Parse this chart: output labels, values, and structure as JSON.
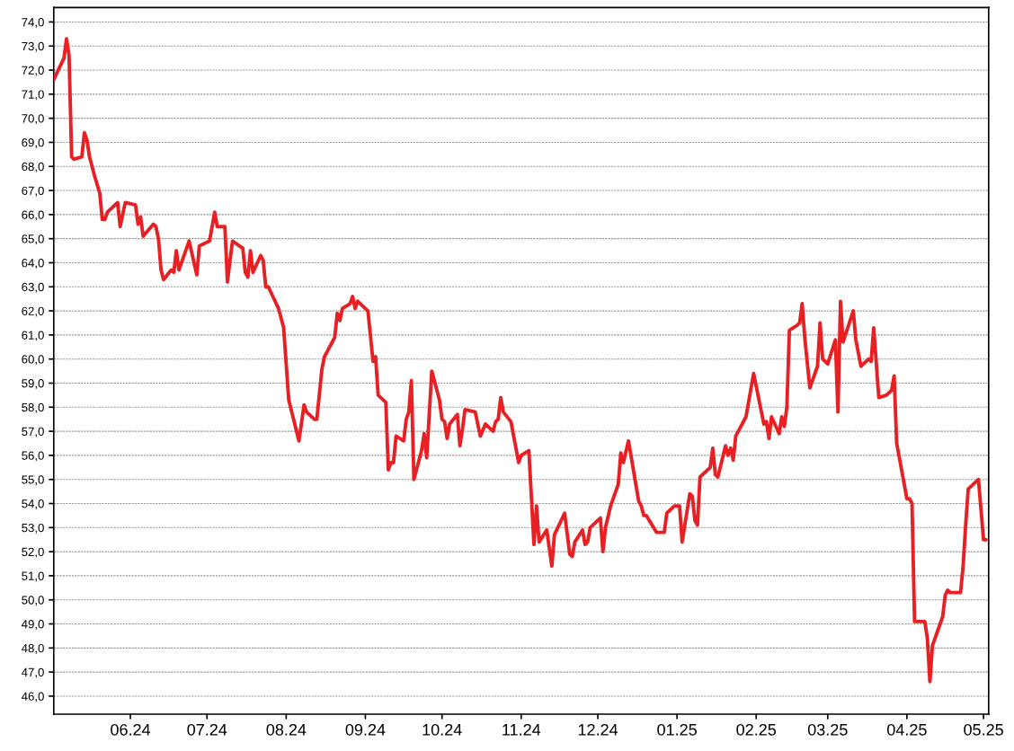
{
  "chart_data": {
    "type": "line",
    "x": [
      "2024-05-02",
      "2024-05-06",
      "2024-05-07",
      "2024-05-08",
      "2024-05-09",
      "2024-05-10",
      "2024-05-13",
      "2024-05-14",
      "2024-05-15",
      "2024-05-16",
      "2024-05-18",
      "2024-05-20",
      "2024-05-21",
      "2024-05-22",
      "2024-05-23",
      "2024-05-27",
      "2024-05-28",
      "2024-05-30",
      "2024-06-03",
      "2024-06-04",
      "2024-06-05",
      "2024-06-06",
      "2024-06-10",
      "2024-06-11",
      "2024-06-12",
      "2024-06-13",
      "2024-06-14",
      "2024-06-17",
      "2024-06-18",
      "2024-06-19",
      "2024-06-20",
      "2024-06-24",
      "2024-06-27",
      "2024-06-28",
      "2024-07-02",
      "2024-07-04",
      "2024-07-05",
      "2024-07-08",
      "2024-07-09",
      "2024-07-10",
      "2024-07-11",
      "2024-07-15",
      "2024-07-16",
      "2024-07-17",
      "2024-07-18",
      "2024-07-19",
      "2024-07-22",
      "2024-07-23",
      "2024-07-24",
      "2024-07-25",
      "2024-07-29",
      "2024-07-30",
      "2024-07-31",
      "2024-08-02",
      "2024-08-06",
      "2024-08-08",
      "2024-08-09",
      "2024-08-12",
      "2024-08-13",
      "2024-08-15",
      "2024-08-16",
      "2024-08-20",
      "2024-08-21",
      "2024-08-22",
      "2024-08-23",
      "2024-08-26",
      "2024-08-27",
      "2024-08-28",
      "2024-08-29",
      "2024-08-30",
      "2024-09-02",
      "2024-09-04",
      "2024-09-05",
      "2024-09-06",
      "2024-09-09",
      "2024-09-10",
      "2024-09-11",
      "2024-09-12",
      "2024-09-13",
      "2024-09-16",
      "2024-09-17",
      "2024-09-18",
      "2024-09-19",
      "2024-09-20",
      "2024-09-23",
      "2024-09-24",
      "2024-09-25",
      "2024-09-27",
      "2024-09-30",
      "2024-10-01",
      "2024-10-02",
      "2024-10-03",
      "2024-10-04",
      "2024-10-07",
      "2024-10-08",
      "2024-10-09",
      "2024-10-10",
      "2024-10-14",
      "2024-10-16",
      "2024-10-18",
      "2024-10-21",
      "2024-10-22",
      "2024-10-23",
      "2024-10-24",
      "2024-10-25",
      "2024-10-28",
      "2024-10-31",
      "2024-11-01",
      "2024-11-04",
      "2024-11-06",
      "2024-11-07",
      "2024-11-08",
      "2024-11-11",
      "2024-11-13",
      "2024-11-14",
      "2024-11-18",
      "2024-11-20",
      "2024-11-21",
      "2024-11-22",
      "2024-11-25",
      "2024-11-26",
      "2024-11-27",
      "2024-11-28",
      "2024-12-02",
      "2024-12-03",
      "2024-12-04",
      "2024-12-06",
      "2024-12-09",
      "2024-12-10",
      "2024-12-11",
      "2024-12-13",
      "2024-12-17",
      "2024-12-18",
      "2024-12-19",
      "2024-12-20",
      "2024-12-24",
      "2024-12-27",
      "2024-12-28",
      "2024-12-31",
      "2025-01-02",
      "2025-01-03",
      "2025-01-06",
      "2025-01-07",
      "2025-01-08",
      "2025-01-09",
      "2025-01-10",
      "2025-01-14",
      "2025-01-15",
      "2025-01-16",
      "2025-01-17",
      "2025-01-20",
      "2025-01-21",
      "2025-01-22",
      "2025-01-23",
      "2025-01-24",
      "2025-01-28",
      "2025-01-31",
      "2025-02-04",
      "2025-02-05",
      "2025-02-06",
      "2025-02-07",
      "2025-02-10",
      "2025-02-11",
      "2025-02-12",
      "2025-02-13",
      "2025-02-14",
      "2025-02-17",
      "2025-02-18",
      "2025-02-19",
      "2025-02-20",
      "2025-02-22",
      "2025-02-25",
      "2025-02-26",
      "2025-02-27",
      "2025-03-01",
      "2025-03-04",
      "2025-03-05",
      "2025-03-06",
      "2025-03-07",
      "2025-03-11",
      "2025-03-12",
      "2025-03-14",
      "2025-03-17",
      "2025-03-18",
      "2025-03-19",
      "2025-03-21",
      "2025-03-24",
      "2025-03-26",
      "2025-03-27",
      "2025-03-28",
      "2025-04-01",
      "2025-04-02",
      "2025-04-03",
      "2025-04-04",
      "2025-04-08",
      "2025-04-09",
      "2025-04-10",
      "2025-04-11",
      "2025-04-15",
      "2025-04-16",
      "2025-04-17",
      "2025-04-18",
      "2025-04-22",
      "2025-04-23",
      "2025-04-24",
      "2025-04-25",
      "2025-04-29",
      "2025-05-01",
      "2025-05-02"
    ],
    "series": [
      {
        "color": "#e82024",
        "values": [
          71.6,
          72.5,
          73.3,
          72.6,
          68.4,
          68.3,
          68.4,
          69.4,
          69.1,
          68.4,
          67.6,
          66.9,
          65.8,
          65.8,
          66.1,
          66.5,
          65.5,
          66.5,
          66.4,
          65.6,
          65.9,
          65.1,
          65.6,
          65.5,
          65.0,
          63.7,
          63.3,
          63.7,
          63.6,
          64.5,
          63.7,
          64.9,
          63.5,
          64.7,
          64.9,
          66.1,
          65.5,
          65.5,
          63.2,
          64.1,
          64.9,
          64.6,
          63.6,
          63.4,
          64.5,
          63.6,
          64.3,
          64.1,
          63.0,
          63.0,
          62.1,
          61.7,
          61.3,
          58.3,
          56.6,
          58.1,
          57.8,
          57.5,
          57.5,
          59.6,
          60.1,
          60.9,
          61.9,
          61.6,
          62.1,
          62.3,
          62.6,
          62.1,
          62.4,
          62.3,
          62.0,
          59.9,
          60.1,
          58.5,
          58.2,
          55.4,
          55.7,
          55.7,
          56.8,
          56.6,
          57.5,
          57.8,
          59.1,
          55.0,
          56.2,
          56.9,
          55.9,
          59.5,
          58.3,
          57.5,
          57.4,
          56.7,
          57.3,
          57.7,
          56.4,
          57.1,
          57.9,
          57.8,
          56.8,
          57.3,
          57.0,
          57.4,
          57.5,
          58.4,
          57.8,
          57.4,
          55.7,
          56.0,
          56.2,
          52.3,
          53.9,
          52.4,
          52.9,
          51.4,
          52.7,
          53.6,
          51.9,
          51.8,
          52.4,
          52.9,
          52.3,
          52.4,
          53.0,
          53.4,
          52.0,
          53.0,
          53.9,
          54.8,
          56.1,
          55.7,
          56.6,
          54.1,
          53.9,
          53.5,
          53.5,
          52.8,
          52.8,
          53.6,
          53.9,
          53.9,
          52.4,
          54.4,
          54.3,
          53.3,
          53.1,
          55.1,
          55.5,
          56.3,
          55.2,
          55.1,
          56.4,
          56.0,
          56.3,
          55.8,
          56.8,
          57.6,
          59.4,
          57.3,
          57.4,
          56.7,
          57.6,
          56.9,
          57.6,
          57.2,
          58.0,
          61.2,
          61.4,
          61.5,
          62.3,
          60.9,
          58.8,
          59.7,
          61.5,
          60.0,
          59.8,
          60.8,
          57.8,
          62.4,
          60.7,
          62.0,
          60.8,
          59.7,
          60.0,
          59.9,
          61.3,
          58.4,
          58.5,
          58.7,
          59.3,
          56.5,
          54.2,
          54.2,
          54.0,
          49.1,
          49.1,
          48.4,
          46.6,
          48.1,
          49.3,
          50.2,
          50.4,
          50.3,
          50.3,
          51.4,
          53.1,
          54.6,
          55.0,
          52.5,
          52.5
        ]
      }
    ],
    "xlim": [
      "2024-05-02",
      "2025-05-03"
    ],
    "xticks": [
      {
        "value": "2024-06-01",
        "label": "06.24"
      },
      {
        "value": "2024-07-01",
        "label": "07.24"
      },
      {
        "value": "2024-08-01",
        "label": "08.24"
      },
      {
        "value": "2024-09-01",
        "label": "09.24"
      },
      {
        "value": "2024-10-01",
        "label": "10.24"
      },
      {
        "value": "2024-11-01",
        "label": "11.24"
      },
      {
        "value": "2024-12-01",
        "label": "12.24"
      },
      {
        "value": "2025-01-01",
        "label": "01.25"
      },
      {
        "value": "2025-02-01",
        "label": "02.25"
      },
      {
        "value": "2025-03-01",
        "label": "03.25"
      },
      {
        "value": "2025-04-01",
        "label": "04.25"
      },
      {
        "value": "2025-05-01",
        "label": "05.25"
      }
    ],
    "ylim": [
      45.25,
      74.6
    ],
    "yticks": [
      {
        "value": 46,
        "label": "46,0"
      },
      {
        "value": 47,
        "label": "47,0"
      },
      {
        "value": 48,
        "label": "48,0"
      },
      {
        "value": 49,
        "label": "49,0"
      },
      {
        "value": 50,
        "label": "50,0"
      },
      {
        "value": 51,
        "label": "51,0"
      },
      {
        "value": 52,
        "label": "52,0"
      },
      {
        "value": 53,
        "label": "53,0"
      },
      {
        "value": 54,
        "label": "54,0"
      },
      {
        "value": 55,
        "label": "55,0"
      },
      {
        "value": 56,
        "label": "56,0"
      },
      {
        "value": 57,
        "label": "57,0"
      },
      {
        "value": 58,
        "label": "58,0"
      },
      {
        "value": 59,
        "label": "59,0"
      },
      {
        "value": 60,
        "label": "60,0"
      },
      {
        "value": 61,
        "label": "61,0"
      },
      {
        "value": 62,
        "label": "62,0"
      },
      {
        "value": 63,
        "label": "63,0"
      },
      {
        "value": 64,
        "label": "64,0"
      },
      {
        "value": 65,
        "label": "65,0"
      },
      {
        "value": 66,
        "label": "66,0"
      },
      {
        "value": 67,
        "label": "67,0"
      },
      {
        "value": 68,
        "label": "68,0"
      },
      {
        "value": 69,
        "label": "69,0"
      },
      {
        "value": 70,
        "label": "70,0"
      },
      {
        "value": 71,
        "label": "71,0"
      },
      {
        "value": 72,
        "label": "72,0"
      },
      {
        "value": 73,
        "label": "73,0"
      },
      {
        "value": 74,
        "label": "74,0"
      }
    ],
    "grid": "y",
    "marker": "none",
    "line_style": "solid"
  }
}
